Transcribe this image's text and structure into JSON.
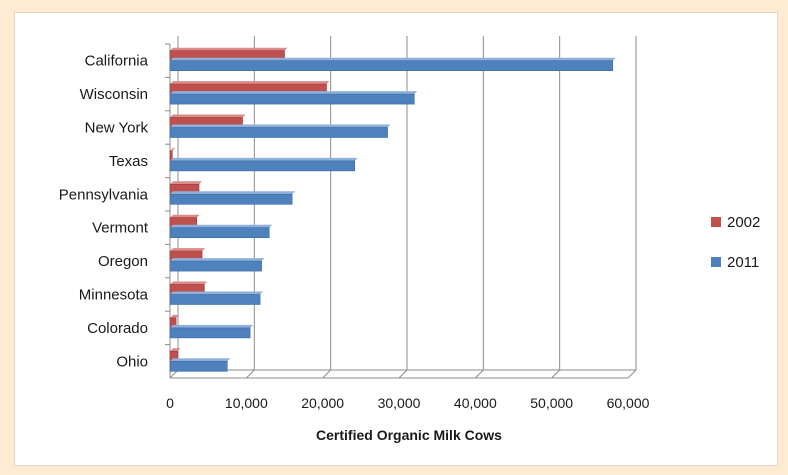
{
  "chart_data": {
    "type": "bar",
    "orientation": "horizontal",
    "categories": [
      "California",
      "Wisconsin",
      "New York",
      "Texas",
      "Pennsylvania",
      "Vermont",
      "Oregon",
      "Minnesota",
      "Colorado",
      "Ohio"
    ],
    "series": [
      {
        "name": "2002",
        "color": "#c0504d",
        "values": [
          15000,
          20500,
          9500,
          300,
          3800,
          3500,
          4200,
          4500,
          800,
          1000
        ]
      },
      {
        "name": "2011",
        "color": "#4f81bd",
        "values": [
          58000,
          32000,
          28500,
          24200,
          16000,
          13000,
          12000,
          11800,
          10500,
          7500
        ]
      }
    ],
    "xlabel": "Certified Organic Milk Cows",
    "xlim": [
      0,
      60000
    ],
    "xticks": [
      0,
      10000,
      20000,
      30000,
      40000,
      50000,
      60000
    ],
    "xtick_labels": [
      "0",
      "10,000",
      "20,000",
      "30,000",
      "40,000",
      "50,000",
      "60,000"
    ],
    "grid": true,
    "legend_position": "right"
  }
}
